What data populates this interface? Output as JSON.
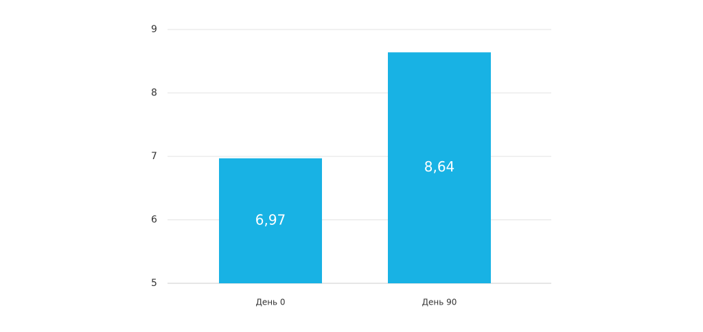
{
  "chart_data": {
    "type": "bar",
    "categories": [
      "День 0",
      "День 90"
    ],
    "values": [
      6.97,
      8.64
    ],
    "value_labels": [
      "6,97",
      "8,64"
    ],
    "color": "#18b2e4",
    "ylim": [
      5,
      9
    ],
    "yticks": [
      5,
      6,
      7,
      8,
      9
    ],
    "grid": true
  }
}
